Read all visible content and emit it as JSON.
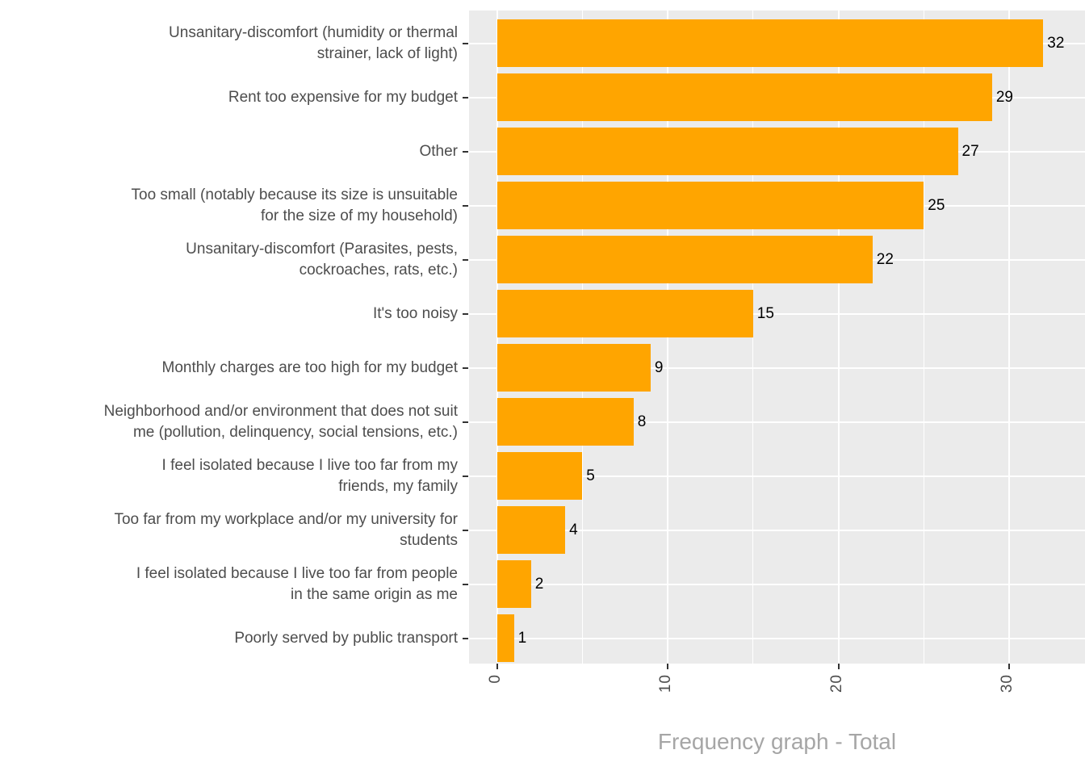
{
  "chart_data": {
    "type": "bar",
    "orientation": "horizontal",
    "title": "Frequency graph - Total",
    "bars": [
      {
        "label_lines": [
          "Unsanitary-discomfort (humidity or thermal",
          "strainer, lack of light)"
        ],
        "value": 32
      },
      {
        "label_lines": [
          "Rent too expensive for my budget"
        ],
        "value": 29
      },
      {
        "label_lines": [
          "Other"
        ],
        "value": 27
      },
      {
        "label_lines": [
          "Too small (notably because its size is unsuitable",
          "for the size of my household)"
        ],
        "value": 25
      },
      {
        "label_lines": [
          "Unsanitary-discomfort (Parasites, pests,",
          "cockroaches, rats, etc.)"
        ],
        "value": 22
      },
      {
        "label_lines": [
          "It's too noisy"
        ],
        "value": 15
      },
      {
        "label_lines": [
          "Monthly charges are too high for my budget"
        ],
        "value": 9
      },
      {
        "label_lines": [
          "Neighborhood and/or environment that does not suit",
          "me (pollution, delinquency, social tensions, etc.)"
        ],
        "value": 8
      },
      {
        "label_lines": [
          "I feel isolated because I live too far from my",
          "friends, my family"
        ],
        "value": 5
      },
      {
        "label_lines": [
          "Too far from my workplace and/or my university for",
          "students"
        ],
        "value": 4
      },
      {
        "label_lines": [
          "I feel isolated because I live too far from people",
          "in the same origin as me"
        ],
        "value": 2
      },
      {
        "label_lines": [
          "Poorly served by public transport"
        ],
        "value": 1
      }
    ],
    "x_axis": {
      "major_ticks": [
        0,
        10,
        20,
        30
      ],
      "major_tick_labels": [
        "0",
        "10",
        "20",
        "30"
      ],
      "minor_ticks": [
        5,
        15,
        25
      ],
      "min": -1.66,
      "max": 34.45,
      "tick_label_rotation_deg": 90
    },
    "grid": {
      "major": true,
      "minor": true
    },
    "legend": "none",
    "colors": {
      "bar": "#FFA500",
      "panel_bg": "#EBEBEB",
      "gridline": "#FFFFFF",
      "axis_text": "#4D4D4D",
      "tick_mark": "#333333",
      "value_label": "#000000",
      "title": "#A6A6A6"
    }
  }
}
